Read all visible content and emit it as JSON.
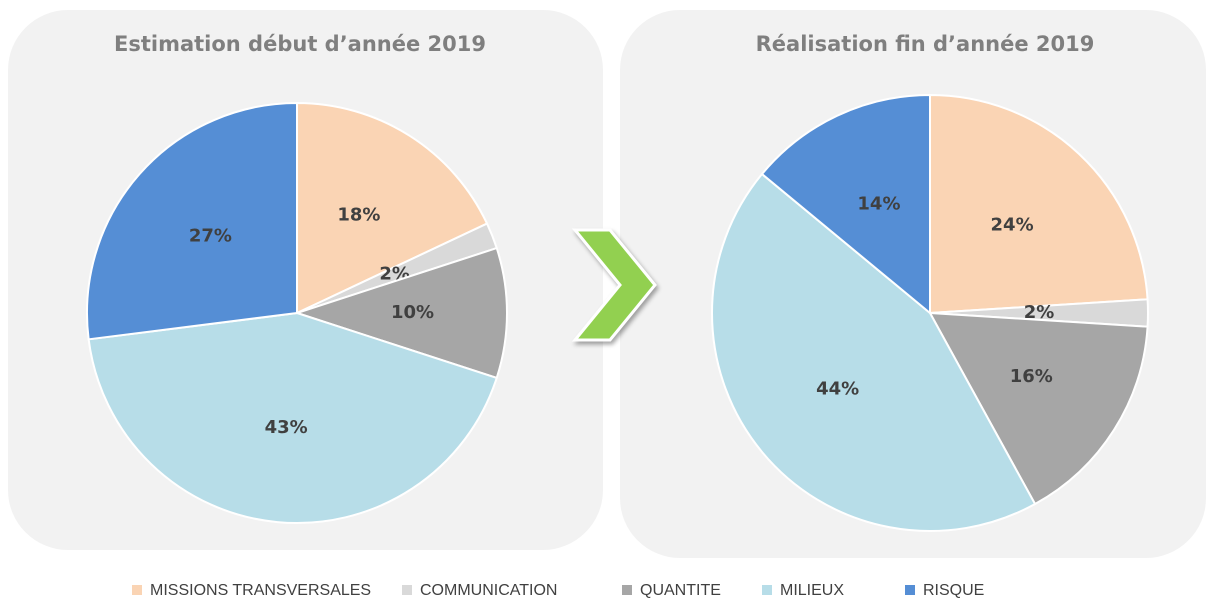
{
  "chart_data": [
    {
      "type": "pie",
      "title": "Estimation début d’année 2019",
      "categories": [
        "MISSIONS TRANSVERSALES",
        "COMMUNICATION",
        "QUANTITE",
        "MILIEUX",
        "RISQUE"
      ],
      "values": [
        18,
        2,
        10,
        43,
        27
      ],
      "value_labels": [
        "18%",
        "2%",
        "10%",
        "43%",
        "27%"
      ],
      "colors": [
        "#fad4b4",
        "#d9d9d9",
        "#a6a6a6",
        "#b7dde8",
        "#558ed5"
      ]
    },
    {
      "type": "pie",
      "title": "Réalisation fin d’année 2019",
      "categories": [
        "MISSIONS TRANSVERSALES",
        "COMMUNICATION",
        "QUANTITE",
        "MILIEUX",
        "RISQUE"
      ],
      "values": [
        24,
        2,
        16,
        44,
        14
      ],
      "value_labels": [
        "24%",
        "2%",
        "16%",
        "44%",
        "14%"
      ],
      "colors": [
        "#fad4b4",
        "#d9d9d9",
        "#a6a6a6",
        "#b7dde8",
        "#558ed5"
      ]
    }
  ]
}
